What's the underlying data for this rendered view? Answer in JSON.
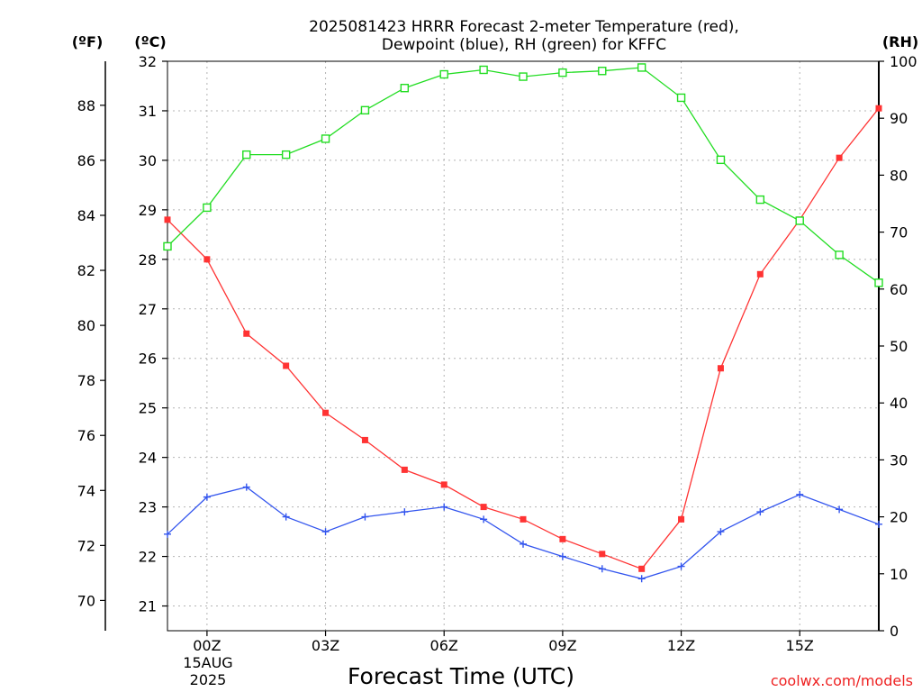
{
  "chart_data": {
    "type": "line",
    "title": [
      "2025081423 HRRR Forecast 2-meter Temperature (red),",
      "Dewpoint (blue), RH (green) for KFFC"
    ],
    "xlabel": "Forecast Time (UTC)",
    "credit": "coolwx.com/models",
    "grid": true,
    "x_hours": [
      -1,
      0,
      1,
      2,
      3,
      4,
      5,
      6,
      7,
      8,
      9,
      10,
      11,
      12,
      13,
      14,
      15,
      16,
      17
    ],
    "x_range": [
      -1,
      17
    ],
    "x_ticks": [
      {
        "hour": 0,
        "label": "00Z"
      },
      {
        "hour": 3,
        "label": "03Z"
      },
      {
        "hour": 6,
        "label": "06Z"
      },
      {
        "hour": 9,
        "label": "09Z"
      },
      {
        "hour": 12,
        "label": "12Z"
      },
      {
        "hour": 15,
        "label": "15Z"
      }
    ],
    "date_label": [
      "15AUG",
      "2025"
    ],
    "axes": {
      "celsius": {
        "unit": "(ºC)",
        "range": [
          20.5,
          32
        ],
        "ticks": [
          21,
          22,
          23,
          24,
          25,
          26,
          27,
          28,
          29,
          30,
          31,
          32
        ]
      },
      "fahrenheit": {
        "unit": "(ºF)",
        "ticks": [
          70,
          72,
          74,
          76,
          78,
          80,
          82,
          84,
          86,
          88
        ]
      },
      "rh": {
        "unit": "(RH)",
        "range": [
          0,
          100
        ],
        "ticks": [
          0,
          10,
          20,
          30,
          40,
          50,
          60,
          70,
          80,
          90,
          100
        ]
      }
    },
    "series": [
      {
        "axis": "celsius",
        "color": "#ff3333",
        "marker": "filled-square",
        "values": [
          28.8,
          28.0,
          26.5,
          25.85,
          24.9,
          24.35,
          23.75,
          23.45,
          23.0,
          22.75,
          22.35,
          22.05,
          21.75,
          22.75,
          25.8,
          27.7,
          28.8,
          30.05,
          31.05
        ]
      },
      {
        "axis": "celsius",
        "color": "#3355ee",
        "marker": "plus",
        "values": [
          22.45,
          23.2,
          23.4,
          22.8,
          22.5,
          22.8,
          22.9,
          23.0,
          22.75,
          22.25,
          22.0,
          21.75,
          21.55,
          21.8,
          22.5,
          22.9,
          23.25,
          22.95,
          22.65
        ]
      },
      {
        "axis": "rh",
        "color": "#22dd22",
        "marker": "open-square",
        "values": [
          67.5,
          74.3,
          83.6,
          83.6,
          86.4,
          91.4,
          95.3,
          97.7,
          98.5,
          97.3,
          98.0,
          98.3,
          98.9,
          93.6,
          82.7,
          75.7,
          72.0,
          66.0,
          61.1
        ]
      }
    ]
  }
}
